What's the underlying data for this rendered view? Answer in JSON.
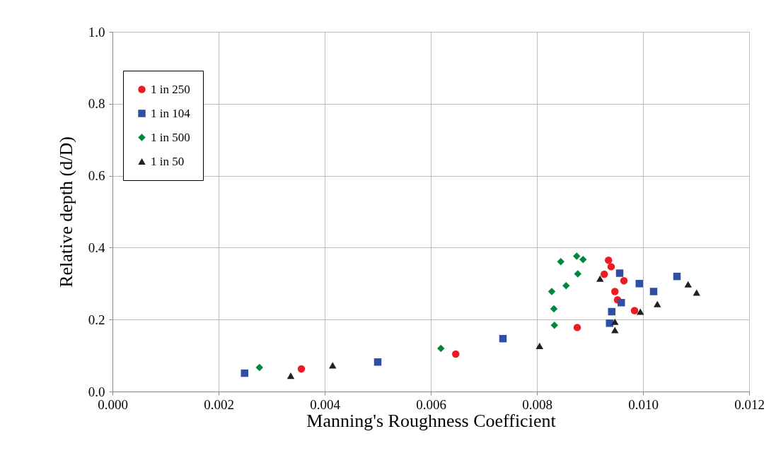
{
  "chart_data": {
    "type": "scatter",
    "xlabel": "Manning's Roughness Coefficient",
    "ylabel": "Relative depth (d/D)",
    "xlim": [
      0,
      0.012
    ],
    "ylim": [
      0,
      1.0
    ],
    "xticks": [
      {
        "value": 0,
        "label": "0.000"
      },
      {
        "value": 0.002,
        "label": "0.002"
      },
      {
        "value": 0.004,
        "label": "0.004"
      },
      {
        "value": 0.006,
        "label": "0.006"
      },
      {
        "value": 0.008,
        "label": "0.008"
      },
      {
        "value": 0.01,
        "label": "0.010"
      },
      {
        "value": 0.012,
        "label": "0.012"
      }
    ],
    "yticks": [
      {
        "value": 0,
        "label": "0.0"
      },
      {
        "value": 0.2,
        "label": "0.2"
      },
      {
        "value": 0.4,
        "label": "0.4"
      },
      {
        "value": 0.6,
        "label": "0.6"
      },
      {
        "value": 0.8,
        "label": "0.8"
      },
      {
        "value": 1.0,
        "label": "1.0"
      }
    ],
    "grid": true,
    "legend": "top left",
    "series": [
      {
        "name": "1 in 250",
        "color": "#ed1c24",
        "marker": "circle",
        "x": [
          0.00356,
          0.00647,
          0.00876,
          0.00935,
          0.0094,
          0.00927,
          0.00964,
          0.00947,
          0.00952,
          0.00984
        ],
        "values": [
          0.063,
          0.104,
          0.178,
          0.365,
          0.347,
          0.326,
          0.308,
          0.278,
          0.255,
          0.225
        ]
      },
      {
        "name": "1 in 104",
        "color": "#2e4fa3",
        "marker": "square",
        "x": [
          0.00249,
          0.005,
          0.00736,
          0.00956,
          0.00993,
          0.0102,
          0.01064,
          0.00959,
          0.00941,
          0.00937
        ],
        "values": [
          0.051,
          0.082,
          0.147,
          0.329,
          0.3,
          0.278,
          0.32,
          0.247,
          0.222,
          0.19
        ]
      },
      {
        "name": "1 in 500",
        "color": "#00893e",
        "marker": "diamond",
        "x": [
          0.00277,
          0.00619,
          0.00845,
          0.00875,
          0.00887,
          0.00877,
          0.00855,
          0.00828,
          0.00832,
          0.00833
        ],
        "values": [
          0.067,
          0.12,
          0.361,
          0.376,
          0.367,
          0.327,
          0.294,
          0.278,
          0.23,
          0.184
        ]
      },
      {
        "name": "1 in 50",
        "color": "#231f20",
        "marker": "triangle",
        "x": [
          0.00336,
          0.00415,
          0.00805,
          0.00919,
          0.01085,
          0.01101,
          0.01027,
          0.00995,
          0.00947,
          0.00947
        ],
        "values": [
          0.044,
          0.073,
          0.127,
          0.314,
          0.298,
          0.275,
          0.243,
          0.222,
          0.194,
          0.171
        ]
      }
    ]
  }
}
